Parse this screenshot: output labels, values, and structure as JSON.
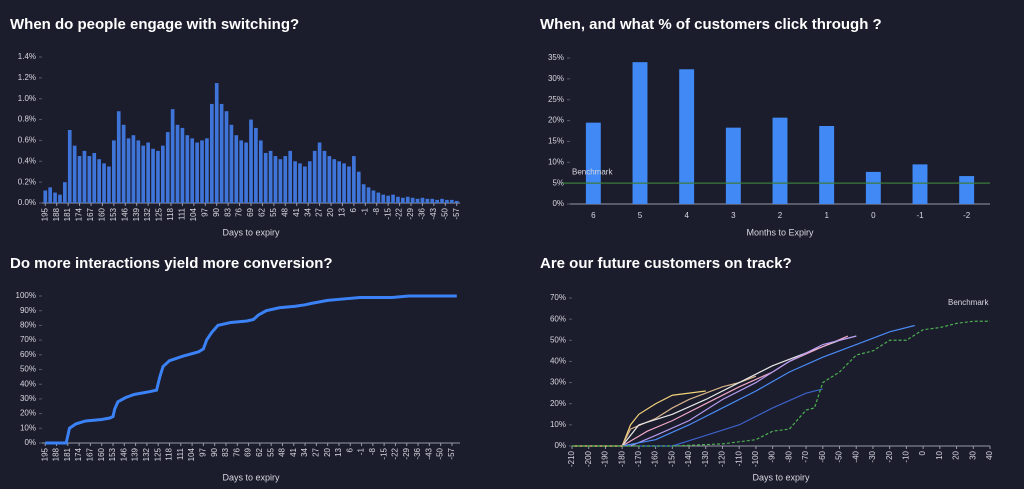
{
  "chart_data": [
    {
      "type": "bar",
      "title": "When do people engage with switching?",
      "x_label": "Days to expiry",
      "color": "#3f74d9",
      "x": [
        195,
        192,
        189,
        186,
        183,
        180,
        177,
        174,
        171,
        168,
        165,
        162,
        159,
        156,
        153,
        150,
        147,
        144,
        141,
        138,
        135,
        132,
        129,
        126,
        123,
        120,
        117,
        114,
        111,
        108,
        105,
        102,
        99,
        96,
        93,
        90,
        87,
        84,
        81,
        78,
        75,
        72,
        69,
        66,
        63,
        60,
        57,
        54,
        51,
        48,
        45,
        42,
        39,
        36,
        33,
        30,
        27,
        24,
        21,
        18,
        15,
        12,
        9,
        6,
        3,
        0,
        -3,
        -6,
        -9,
        -12,
        -15,
        -18,
        -21,
        -24,
        -27,
        -30,
        -33,
        -36,
        -39,
        -42,
        -45,
        -48,
        -51,
        -54,
        -57
      ],
      "values": [
        0.12,
        0.15,
        0.1,
        0.08,
        0.2,
        0.7,
        0.55,
        0.45,
        0.5,
        0.45,
        0.48,
        0.42,
        0.38,
        0.35,
        0.6,
        0.88,
        0.75,
        0.62,
        0.65,
        0.6,
        0.55,
        0.58,
        0.52,
        0.5,
        0.55,
        0.68,
        0.9,
        0.75,
        0.72,
        0.65,
        0.62,
        0.58,
        0.6,
        0.62,
        0.95,
        1.15,
        0.95,
        0.88,
        0.75,
        0.65,
        0.6,
        0.58,
        0.8,
        0.72,
        0.6,
        0.48,
        0.5,
        0.45,
        0.42,
        0.45,
        0.5,
        0.4,
        0.38,
        0.35,
        0.4,
        0.5,
        0.58,
        0.5,
        0.45,
        0.42,
        0.4,
        0.38,
        0.35,
        0.45,
        0.3,
        0.18,
        0.15,
        0.12,
        0.1,
        0.08,
        0.07,
        0.08,
        0.06,
        0.05,
        0.06,
        0.05,
        0.04,
        0.05,
        0.04,
        0.04,
        0.03,
        0.04,
        0.03,
        0.03,
        0.02
      ],
      "xlim": [
        197,
        -59
      ],
      "xticks": [
        195,
        188,
        181,
        174,
        167,
        160,
        153,
        146,
        139,
        132,
        125,
        118,
        111,
        104,
        97,
        90,
        83,
        76,
        69,
        62,
        55,
        48,
        41,
        34,
        27,
        20,
        13,
        6,
        -1,
        -8,
        -15,
        -22,
        -29,
        -36,
        -43,
        -50,
        -57
      ],
      "ylim": [
        0,
        1.4
      ],
      "yticks": [
        {
          "value": 0,
          "label": "0.0%"
        },
        {
          "value": 0.2,
          "label": "0.2%"
        },
        {
          "value": 0.4,
          "label": "0.4%"
        },
        {
          "value": 0.6,
          "label": "0.6%"
        },
        {
          "value": 0.8,
          "label": "0.8%"
        },
        {
          "value": 1.0,
          "label": "1.0%"
        },
        {
          "value": 1.2,
          "label": "1.2%"
        },
        {
          "value": 1.4,
          "label": "1.4%"
        }
      ]
    },
    {
      "type": "bar",
      "title": "When, and what % of customers click through ?",
      "x_label": "Months to Expiry",
      "color": "#4189f4",
      "categories": [
        "6",
        "5",
        "4",
        "3",
        "2",
        "1",
        "0",
        "-1",
        "-2"
      ],
      "values": [
        19.5,
        34,
        32.3,
        18.3,
        20.7,
        18.7,
        7.7,
        9.5,
        6.7
      ],
      "ylim": [
        0,
        35
      ],
      "yticks": [
        {
          "value": 0,
          "label": "0%"
        },
        {
          "value": 5,
          "label": "5%"
        },
        {
          "value": 10,
          "label": "10%"
        },
        {
          "value": 15,
          "label": "15%"
        },
        {
          "value": 20,
          "label": "20%"
        },
        {
          "value": 25,
          "label": "25%"
        },
        {
          "value": 30,
          "label": "30%"
        },
        {
          "value": 35,
          "label": "35%"
        }
      ],
      "benchmark": {
        "label": "Benchmark",
        "value": 5,
        "color": "#3c7a3c"
      }
    },
    {
      "type": "line",
      "title": "Do more interactions yield more conversion?",
      "x_label": "Days to expiry",
      "color": "#3b82f6",
      "x": [
        195,
        182,
        181,
        180,
        176,
        170,
        160,
        155,
        153,
        152,
        150,
        145,
        140,
        130,
        126,
        124,
        122,
        118,
        110,
        100,
        97,
        95,
        92,
        88,
        80,
        70,
        66,
        63,
        58,
        50,
        40,
        34,
        30,
        20,
        10,
        0,
        -20,
        -30,
        -60
      ],
      "values": [
        0,
        0,
        5,
        10,
        13,
        15,
        16,
        17,
        18,
        23,
        28,
        31,
        33,
        35,
        36,
        45,
        52,
        56,
        59,
        62,
        64,
        70,
        75,
        80,
        82,
        83,
        84,
        87,
        90,
        92,
        93,
        94,
        95,
        97,
        98,
        99,
        99,
        100,
        100
      ],
      "xlim": [
        197,
        -62
      ],
      "xticks": [
        195,
        188,
        181,
        174,
        167,
        160,
        153,
        146,
        139,
        132,
        125,
        118,
        111,
        104,
        97,
        90,
        83,
        76,
        69,
        62,
        55,
        48,
        41,
        34,
        27,
        20,
        13,
        6,
        -1,
        -8,
        -15,
        -22,
        -29,
        -36,
        -43,
        -50,
        -57
      ],
      "ylim": [
        0,
        100
      ],
      "yticks": [
        {
          "value": 0,
          "label": "0%"
        },
        {
          "value": 10,
          "label": "10%"
        },
        {
          "value": 20,
          "label": "20%"
        },
        {
          "value": 30,
          "label": "30%"
        },
        {
          "value": 40,
          "label": "40%"
        },
        {
          "value": 50,
          "label": "50%"
        },
        {
          "value": 60,
          "label": "60%"
        },
        {
          "value": 70,
          "label": "70%"
        },
        {
          "value": 80,
          "label": "80%"
        },
        {
          "value": 90,
          "label": "90%"
        },
        {
          "value": 100,
          "label": "100%"
        }
      ]
    },
    {
      "type": "line",
      "title": "Are our future customers on track?",
      "x_label": "Days to expiry",
      "xlim": [
        -210,
        40
      ],
      "xticks": [
        -210,
        -200,
        -190,
        -180,
        -170,
        -160,
        -150,
        -140,
        -130,
        -120,
        -110,
        -100,
        -90,
        -80,
        -70,
        -60,
        -50,
        -40,
        -30,
        -20,
        -10,
        0,
        10,
        20,
        30,
        40
      ],
      "ylim": [
        0,
        70
      ],
      "yticks": [
        {
          "value": 0,
          "label": "0%"
        },
        {
          "value": 10,
          "label": "10%"
        },
        {
          "value": 20,
          "label": "20%"
        },
        {
          "value": 30,
          "label": "30%"
        },
        {
          "value": 40,
          "label": "40%"
        },
        {
          "value": 50,
          "label": "50%"
        },
        {
          "value": 60,
          "label": "60%"
        },
        {
          "value": 70,
          "label": "70%"
        }
      ],
      "series": [
        {
          "color": "#f2d27a",
          "x": [
            -210,
            -180,
            -175,
            -170,
            -160,
            -150,
            -140,
            -130
          ],
          "values": [
            0,
            0,
            10,
            15,
            20,
            24,
            25,
            26
          ]
        },
        {
          "color": "#d9b48a",
          "x": [
            -180,
            -175,
            -160,
            -150,
            -140,
            -120,
            -110,
            -100
          ],
          "values": [
            0,
            8,
            13,
            18,
            22,
            28,
            30,
            33
          ]
        },
        {
          "color": "#e8e8e8",
          "x": [
            -180,
            -170,
            -150,
            -130,
            -110,
            -90,
            -70,
            -50,
            -40
          ],
          "values": [
            0,
            10,
            15,
            22,
            30,
            38,
            44,
            50,
            52
          ]
        },
        {
          "color": "#f0a8c8",
          "x": [
            -180,
            -165,
            -150,
            -130,
            -110,
            -90,
            -80,
            -60,
            -45
          ],
          "values": [
            0,
            7,
            12,
            20,
            28,
            35,
            40,
            47,
            52
          ]
        },
        {
          "color": "#b59cf0",
          "x": [
            -175,
            -160,
            -140,
            -120,
            -100,
            -80,
            -60,
            -40
          ],
          "values": [
            0,
            5,
            12,
            22,
            30,
            40,
            48,
            52
          ]
        },
        {
          "color": "#4a8cf6",
          "x": [
            -180,
            -160,
            -140,
            -120,
            -100,
            -80,
            -60,
            -40,
            -20,
            -5
          ],
          "values": [
            0,
            3,
            10,
            18,
            26,
            35,
            42,
            48,
            54,
            57
          ]
        },
        {
          "color": "#3b62c8",
          "x": [
            -170,
            -150,
            -130,
            -110,
            -90,
            -70,
            -60
          ],
          "values": [
            0,
            0,
            5,
            10,
            18,
            25,
            27
          ]
        },
        {
          "name": "Benchmark",
          "color": "#4caf50",
          "dashed": true,
          "x": [
            -210,
            -150,
            -120,
            -100,
            -90,
            -80,
            -70,
            -65,
            -60,
            -50,
            -40,
            -30,
            -20,
            -10,
            0,
            10,
            20,
            30,
            40
          ],
          "values": [
            0,
            0,
            1,
            3,
            7,
            8,
            17,
            18,
            30,
            35,
            43,
            45,
            50,
            50,
            55,
            56,
            58,
            59,
            59
          ]
        }
      ]
    }
  ]
}
